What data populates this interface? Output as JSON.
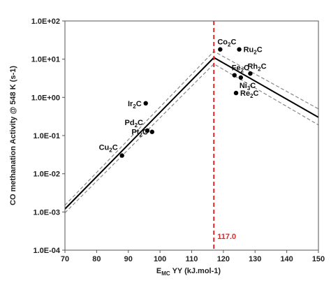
{
  "chart_data": {
    "type": "scatter",
    "title": "",
    "xlabel": {
      "main": "E",
      "sub": "MC",
      "rest": " YY (kJ.mol-1)"
    },
    "ylabel": "CO  methanation Activity @ 548 K (s-1)",
    "xlim": [
      70,
      150
    ],
    "ylim_log10": [
      -4,
      2
    ],
    "y_scale": "log",
    "grid": false,
    "legend": "none",
    "x_ticks": [
      "70",
      "80",
      "90",
      "100",
      "110",
      "120",
      "130",
      "140",
      "150"
    ],
    "y_ticks": [
      "1.0E-04",
      "1.0E-03",
      "1.0E-02",
      "1.0E-01",
      "1.0E+00",
      "1.0E+01",
      "1.0E+02"
    ],
    "points": [
      {
        "id": "Co2C",
        "label": {
          "main": "Co",
          "sub": "2",
          "rest": "C"
        },
        "x": 119,
        "y": 18,
        "label_pos": "above-right"
      },
      {
        "id": "Ru2C",
        "label": {
          "main": "Ru",
          "sub": "2",
          "rest": "C"
        },
        "x": 125,
        "y": 18,
        "label_pos": "right"
      },
      {
        "id": "Fe2C",
        "label": {
          "main": "Fe",
          "sub": "2",
          "rest": "C"
        },
        "x": 123.5,
        "y": 3.8,
        "label_pos": "above-right"
      },
      {
        "id": "Ni3C",
        "label": {
          "main": "Ni",
          "sub": "3",
          "rest": "C"
        },
        "x": 125.5,
        "y": 3.3,
        "label_pos": "below-right"
      },
      {
        "id": "Rh2C",
        "label": {
          "main": "Rh",
          "sub": "2",
          "rest": "C"
        },
        "x": 128.5,
        "y": 4.2,
        "label_pos": "above-right"
      },
      {
        "id": "Re2C",
        "label": {
          "main": "Re",
          "sub": "2",
          "rest": "C"
        },
        "x": 124,
        "y": 1.3,
        "label_pos": "right"
      },
      {
        "id": "Ir2C",
        "label": {
          "main": "Ir",
          "sub": "2",
          "rest": "C"
        },
        "x": 95.5,
        "y": 0.7,
        "label_pos": "left"
      },
      {
        "id": "Pd2C",
        "label": {
          "main": "Pd",
          "sub": "2",
          "rest": "C"
        },
        "x": 96,
        "y": 0.135,
        "label_pos": "above-left"
      },
      {
        "id": "Pt2C",
        "label": {
          "main": "Pt",
          "sub": "2",
          "rest": "C"
        },
        "x": 97.5,
        "y": 0.125,
        "label_pos": "left"
      },
      {
        "id": "Cu2C",
        "label": {
          "main": "Cu",
          "sub": "2",
          "rest": "C"
        },
        "x": 88,
        "y": 0.03,
        "label_pos": "above-left"
      }
    ],
    "volcano_line": {
      "style": "solid",
      "color": "#000000",
      "points": [
        {
          "x": 70,
          "y": 0.0012
        },
        {
          "x": 117,
          "y": 11
        },
        {
          "x": 150,
          "y": 0.3
        }
      ]
    },
    "bound_lines": [
      {
        "style": "dashed",
        "color": "#888888",
        "points": [
          {
            "x": 70,
            "y": 0.0015
          },
          {
            "x": 117,
            "y": 16
          },
          {
            "x": 150,
            "y": 0.5
          }
        ]
      },
      {
        "style": "dashed",
        "color": "#888888",
        "points": [
          {
            "x": 70,
            "y": 0.00095
          },
          {
            "x": 117,
            "y": 7.5
          },
          {
            "x": 150,
            "y": 0.19
          }
        ]
      }
    ],
    "vertical_marker": {
      "x": 117,
      "label": "117.0",
      "color": "#e0262a"
    }
  }
}
